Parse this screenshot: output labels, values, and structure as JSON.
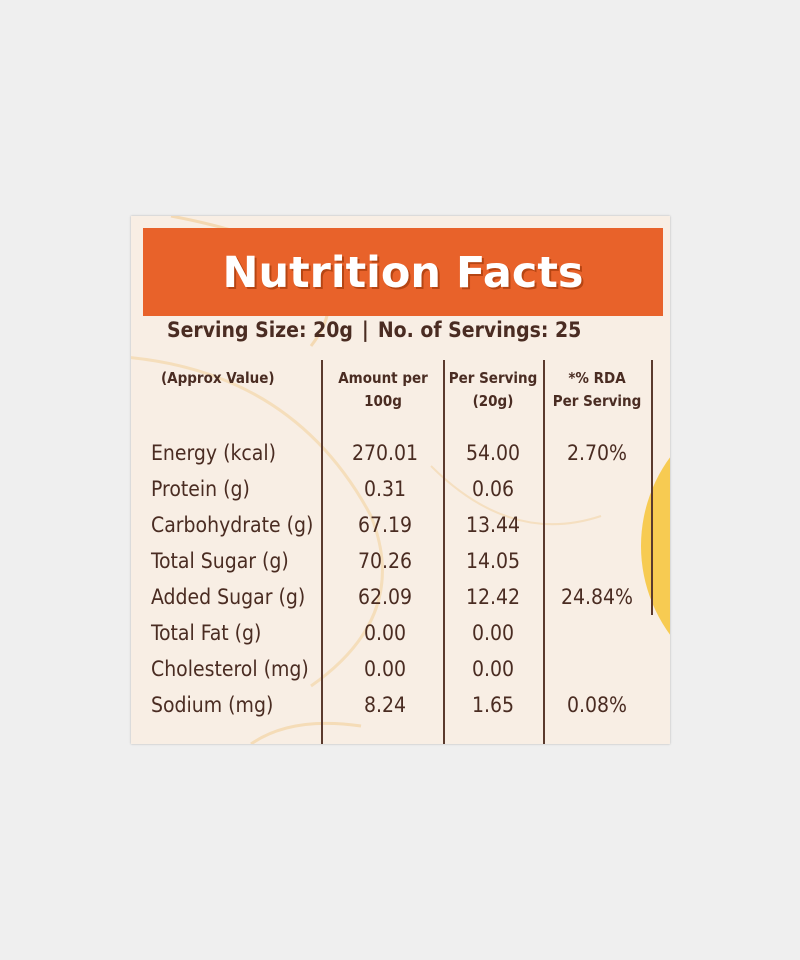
{
  "panel": {
    "title": "Nutrition Facts",
    "serving_size": "Serving Size: 20g",
    "separator": "|",
    "servings": "No. of Servings: 25"
  },
  "table": {
    "headers": {
      "name": "(Approx Value)",
      "amount_line1": "Amount per",
      "amount_line2": "100g",
      "per_line1": "Per Serving",
      "per_line2": "(20g)",
      "rda_line1": "*% RDA",
      "rda_line2": "Per Serving"
    },
    "rows": [
      {
        "name": "Energy (kcal)",
        "amount": "270.01",
        "per_serving": "54.00",
        "rda": "2.70%"
      },
      {
        "name": "Protein (g)",
        "amount": "0.31",
        "per_serving": "0.06",
        "rda": ""
      },
      {
        "name": "Carbohydrate (g)",
        "amount": "67.19",
        "per_serving": "13.44",
        "rda": ""
      },
      {
        "name": "Total Sugar (g)",
        "amount": "70.26",
        "per_serving": "14.05",
        "rda": ""
      },
      {
        "name": "Added Sugar (g)",
        "amount": "62.09",
        "per_serving": "12.42",
        "rda": "24.84%"
      },
      {
        "name": "Total Fat (g)",
        "amount": "0.00",
        "per_serving": "0.00",
        "rda": ""
      },
      {
        "name": "Cholesterol (mg)",
        "amount": "0.00",
        "per_serving": "0.00",
        "rda": ""
      },
      {
        "name": "Sodium (mg)",
        "amount": "8.24",
        "per_serving": "1.65",
        "rda": "0.08%"
      }
    ]
  },
  "colors": {
    "background": "#efefef",
    "label": "#f8eee4",
    "banner": "#e8622a",
    "text": "#4a2c22",
    "accent_yellow": "#f7c84a"
  }
}
